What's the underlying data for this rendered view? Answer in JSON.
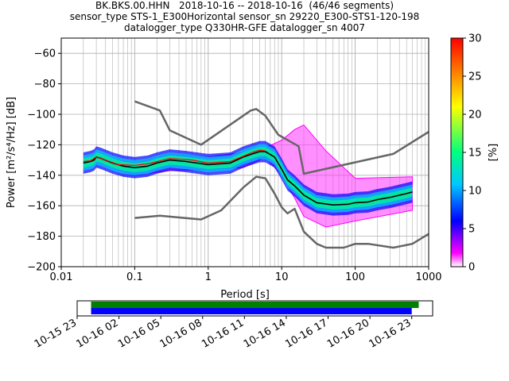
{
  "title_lines": [
    "BK.BKS.00.HHN   2018-10-16 -- 2018-10-16  (46/46 segments)",
    "sensor_type STS-1_E300Horizontal sensor_sn 29220_E300-STS1-120-198",
    "datalogger_type Q330HR-GFE datalogger_sn 4007"
  ],
  "chart_data": [
    {
      "type": "heatmap",
      "title": "BK.BKS.00.HHN   2018-10-16 -- 2018-10-16  (46/46 segments)",
      "xlabel": "Period [s]",
      "ylabel": "Power [m²/s⁴/Hz] [dB]",
      "x_scale": "log",
      "xlim": [
        0.01,
        1000
      ],
      "ylim": [
        -200,
        -50
      ],
      "x_ticks": [
        0.01,
        0.1,
        1,
        10,
        100,
        1000
      ],
      "x_tick_labels": [
        "0.01",
        "0.1",
        "1",
        "10",
        "100",
        "1000"
      ],
      "y_ticks": [
        -200,
        -180,
        -160,
        -140,
        -120,
        -100,
        -80,
        -60
      ],
      "y_tick_labels": [
        "−200",
        "−180",
        "−160",
        "−140",
        "−120",
        "−100",
        "−80",
        "−60"
      ],
      "grid": true,
      "colorbar": {
        "label": "[%]",
        "range": [
          0,
          30
        ],
        "ticks": [
          0,
          5,
          10,
          15,
          20,
          25,
          30
        ],
        "colormap": [
          "#ffffff",
          "#ff00ff",
          "#0000ff",
          "#00c8ff",
          "#00ff80",
          "#ffff00",
          "#ff0000"
        ]
      },
      "series": [
        {
          "name": "",
          "color": "#666666",
          "x": [
            0.1,
            0.22,
            0.3,
            0.8,
            3.8,
            4.5,
            6,
            9,
            17,
            20,
            330,
            1000
          ],
          "y": [
            -91.5,
            -97.5,
            -110.5,
            -120,
            -97.5,
            -96.5,
            -101,
            -113.5,
            -121,
            -139,
            -126,
            -111.5
          ]
        },
        {
          "name": "",
          "color": "#666666",
          "x": [
            0.1,
            0.22,
            0.8,
            1.5,
            3,
            4.5,
            6,
            8,
            10,
            12,
            15,
            20,
            30,
            40,
            70,
            100,
            150,
            330,
            600,
            1000
          ],
          "y": [
            -168,
            -166.5,
            -169,
            -163,
            -148,
            -141,
            -142,
            -152,
            -161,
            -165,
            -162,
            -177,
            -185,
            -187.5,
            -187.5,
            -185,
            -185,
            -187.5,
            -185,
            -178.5
          ]
        },
        {
          "name": "",
          "color": "#000000",
          "x": [
            0.02,
            0.025,
            0.028,
            0.03,
            0.035,
            0.05,
            0.07,
            0.1,
            0.15,
            0.2,
            0.3,
            0.5,
            1,
            2,
            3,
            4,
            5,
            6,
            8,
            10,
            12,
            15,
            20,
            30,
            50,
            80,
            100,
            150,
            200,
            300,
            500,
            600
          ],
          "y": [
            -132,
            -131,
            -130,
            -128,
            -129,
            -132,
            -134,
            -135,
            -134,
            -132,
            -130,
            -131,
            -133,
            -132,
            -128,
            -126,
            -124.5,
            -124.5,
            -128,
            -136,
            -143,
            -147,
            -153,
            -158,
            -159.5,
            -159,
            -158,
            -157.5,
            -156,
            -154.5,
            -152,
            -151
          ]
        },
        {
          "name": "",
          "color": "#ff0000",
          "x": [
            0.02,
            0.025,
            0.03,
            0.04,
            0.06,
            0.1,
            0.15,
            0.3,
            0.6,
            1,
            2,
            4,
            5,
            6
          ],
          "y": [
            -131,
            -130.5,
            -128,
            -130,
            -133,
            -133.5,
            -132.5,
            -129,
            -130,
            -132,
            -131,
            -125,
            -123.5,
            -124
          ]
        }
      ],
      "density": {
        "min_percent": [
          0.028,
          -127,
          0.1,
          -132,
          0.3,
          -126,
          1,
          -128,
          3,
          -125,
          6,
          -122,
          10,
          -117,
          15,
          -110,
          20,
          -107,
          40,
          -124,
          100,
          -142,
          600,
          -141
        ],
        "max_percent": [
          0.028,
          -131,
          0.1,
          -140,
          0.3,
          -137,
          1,
          -136,
          3,
          -135,
          6,
          -128,
          10,
          -140,
          15,
          -155,
          20,
          -167,
          40,
          -174,
          100,
          -170,
          600,
          -163
        ]
      }
    },
    {
      "type": "bar",
      "title": "",
      "xlabel": "",
      "ylabel": "",
      "x_tick_labels": [
        "10-15 23",
        "10-16 02",
        "10-16 05",
        "10-16 08",
        "10-16 11",
        "10-16 14",
        "10-16 17",
        "10-16 20",
        "10-16 23"
      ],
      "xlim": [
        "10-15 23:00",
        "10-17 00:30"
      ],
      "series": [
        {
          "name": "",
          "color": "#008000",
          "start": "10-16 00:00",
          "end": "10-16 23:30"
        },
        {
          "name": "",
          "color": "#0000ff",
          "start": "10-16 00:00",
          "end": "10-16 23:00"
        }
      ]
    }
  ]
}
